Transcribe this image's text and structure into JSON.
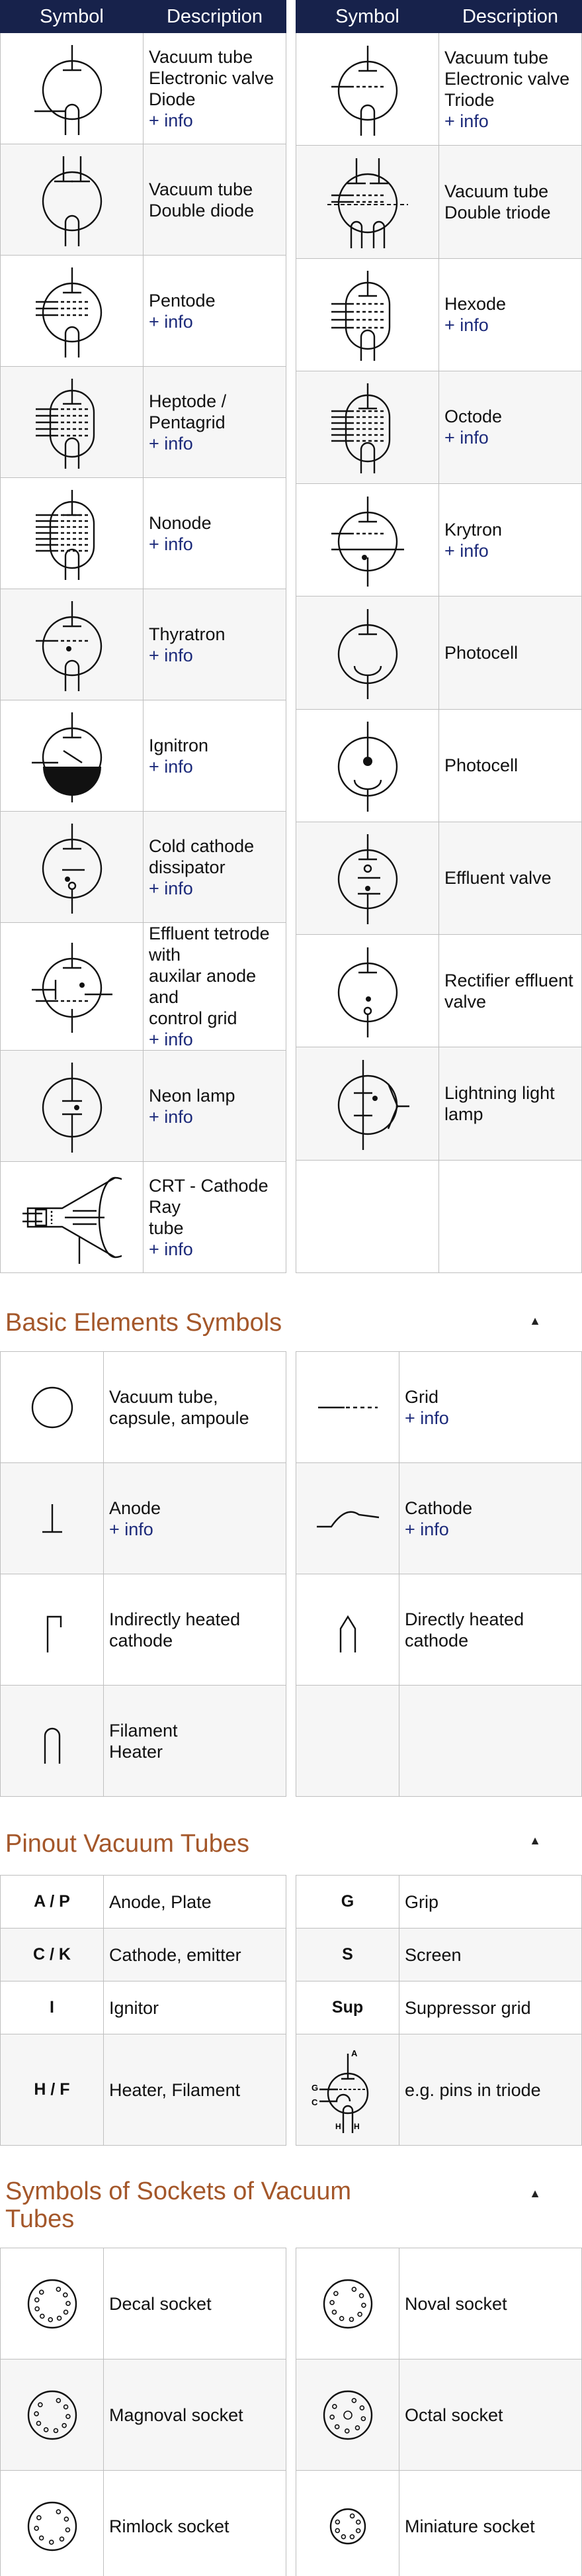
{
  "main_table": {
    "headers": {
      "symbol": "Symbol",
      "description": "Description"
    },
    "left": [
      {
        "lines": [
          "Vacuum tube",
          "Electronic valve",
          "Diode"
        ],
        "info": "+ info",
        "icon": "diode-tube-icon"
      },
      {
        "lines": [
          "Vacuum tube",
          "Double diode"
        ],
        "info": "",
        "icon": "double-diode-tube-icon"
      },
      {
        "lines": [
          "Pentode"
        ],
        "info": "+ info",
        "icon": "pentode-icon"
      },
      {
        "lines": [
          "Heptode / Pentagrid"
        ],
        "info": "+ info",
        "icon": "heptode-icon"
      },
      {
        "lines": [
          "Nonode"
        ],
        "info": "+ info",
        "icon": "nonode-icon"
      },
      {
        "lines": [
          "Thyratron"
        ],
        "info": "+ info",
        "icon": "thyratron-icon"
      },
      {
        "lines": [
          "Ignitron"
        ],
        "info": "+ info",
        "icon": "ignitron-icon"
      },
      {
        "lines": [
          "Cold cathode",
          "dissipator"
        ],
        "info": "+ info",
        "icon": "cold-cathode-icon"
      },
      {
        "lines": [
          "Effluent tetrode with",
          "auxilar anode and",
          "control grid"
        ],
        "info": "+ info",
        "icon": "effluent-tetrode-icon"
      },
      {
        "lines": [
          "Neon lamp"
        ],
        "info": "+ info",
        "icon": "neon-lamp-icon"
      },
      {
        "lines": [
          "CRT - Cathode Ray",
          "tube"
        ],
        "info": "+ info",
        "icon": "crt-icon"
      }
    ],
    "right": [
      {
        "lines": [
          "Vacuum tube",
          "Electronic valve",
          "Triode"
        ],
        "info": "+ info",
        "icon": "triode-icon"
      },
      {
        "lines": [
          "Vacuum tube",
          "Double triode"
        ],
        "info": "",
        "icon": "double-triode-icon"
      },
      {
        "lines": [
          "Hexode"
        ],
        "info": "+ info",
        "icon": "hexode-icon"
      },
      {
        "lines": [
          "Octode"
        ],
        "info": "+ info",
        "icon": "octode-icon"
      },
      {
        "lines": [
          "Krytron"
        ],
        "info": "+ info",
        "icon": "krytron-icon"
      },
      {
        "lines": [
          "Photocell"
        ],
        "info": "",
        "icon": "photocell-icon"
      },
      {
        "lines": [
          "Photocell"
        ],
        "info": "",
        "icon": "photocell-dot-icon"
      },
      {
        "lines": [
          "Effluent valve"
        ],
        "info": "",
        "icon": "effluent-valve-icon"
      },
      {
        "lines": [
          "Rectifier effluent",
          "valve"
        ],
        "info": "",
        "icon": "rectifier-effluent-icon"
      },
      {
        "lines": [
          "Lightning light lamp"
        ],
        "info": "",
        "icon": "lightning-lamp-icon"
      },
      {
        "lines": [],
        "info": "",
        "icon": ""
      }
    ]
  },
  "basic": {
    "title": "Basic Elements Symbols",
    "up": "▲",
    "left": [
      {
        "lines": [
          "Vacuum tube,",
          "capsule, ampoule"
        ],
        "info": "",
        "icon": "capsule-icon"
      },
      {
        "lines": [
          "Anode"
        ],
        "info": "+ info",
        "icon": "anode-icon"
      },
      {
        "lines": [
          "Indirectly heated",
          "cathode"
        ],
        "info": "",
        "icon": "indirect-cathode-icon"
      },
      {
        "lines": [
          "Filament",
          "Heater"
        ],
        "info": "",
        "icon": "filament-icon"
      }
    ],
    "right": [
      {
        "lines": [
          "Grid"
        ],
        "info": "+ info",
        "icon": "grid-icon"
      },
      {
        "lines": [
          "Cathode"
        ],
        "info": "+ info",
        "icon": "cathode-icon"
      },
      {
        "lines": [
          "Directly heated",
          "cathode"
        ],
        "info": "",
        "icon": "direct-cathode-icon"
      },
      {
        "lines": [],
        "info": "",
        "icon": ""
      }
    ]
  },
  "pinout": {
    "title": "Pinout Vacuum Tubes",
    "up": "▲",
    "left": [
      {
        "sym": "A / P",
        "desc": "Anode, Plate"
      },
      {
        "sym": "C / K",
        "desc": "Cathode, emitter"
      },
      {
        "sym": "I",
        "desc": "Ignitor"
      },
      {
        "sym": "H / F",
        "desc": "Heater, Filament"
      }
    ],
    "right": [
      {
        "sym": "G",
        "desc": "Grip"
      },
      {
        "sym": "S",
        "desc": "Screen"
      },
      {
        "sym": "Sup",
        "desc": "Suppressor grid"
      },
      {
        "sym": "",
        "desc": "e.g. pins in triode",
        "icon": "triode-pins-icon",
        "pin_labels": [
          "A",
          "G",
          "C",
          "H",
          "H"
        ]
      }
    ]
  },
  "sockets": {
    "title": "Symbols of Sockets of Vacuum Tubes",
    "up": "▲",
    "left": [
      {
        "desc": "Decal socket",
        "icon": "decal-socket-icon"
      },
      {
        "desc": "Magnoval socket",
        "icon": "magnoval-socket-icon"
      },
      {
        "desc": "Rimlock socket",
        "icon": "rimlock-socket-icon"
      }
    ],
    "right": [
      {
        "desc": "Noval socket",
        "icon": "noval-socket-icon"
      },
      {
        "desc": "Octal socket",
        "icon": "octal-socket-icon"
      },
      {
        "desc": "Miniature socket",
        "icon": "miniature-socket-icon"
      }
    ]
  }
}
